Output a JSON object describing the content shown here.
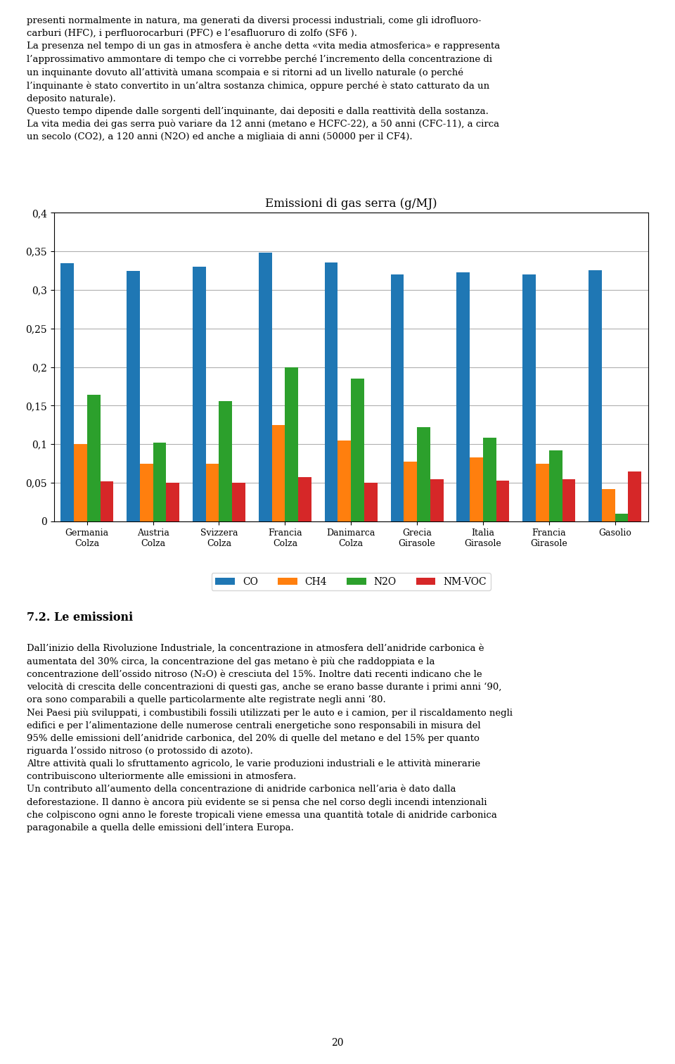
{
  "chart_data": {
    "type": "bar",
    "title": "Emissioni di gas serra (g/MJ)",
    "categories": [
      "Germania\nColza",
      "Austria\nColza",
      "Svizzera\nColza",
      "Francia\nColza",
      "Danimarca\nColza",
      "Grecia\nGirasole",
      "Italia\nGirasole",
      "Francia\nGirasole",
      "Gasolio"
    ],
    "series": [
      {
        "name": "CO",
        "values": [
          0.335,
          0.325,
          0.33,
          0.348,
          0.336,
          0.32,
          0.323,
          0.32,
          0.326
        ]
      },
      {
        "name": "CH4",
        "values": [
          0.1,
          0.075,
          0.075,
          0.125,
          0.105,
          0.077,
          0.083,
          0.075,
          0.042
        ]
      },
      {
        "name": "N2O",
        "values": [
          0.164,
          0.102,
          0.156,
          0.2,
          0.185,
          0.122,
          0.108,
          0.092,
          0.01
        ]
      },
      {
        "name": "NM-VOC",
        "values": [
          0.052,
          0.05,
          0.05,
          0.057,
          0.05,
          0.055,
          0.053,
          0.055,
          0.065
        ]
      }
    ],
    "ylim": [
      0,
      0.4
    ],
    "yticks": [
      0,
      {
        "value": 0.05,
        "label": "0,05"
      },
      {
        "value": 0.1,
        "label": "0,1"
      },
      {
        "value": 0.15,
        "label": "0,15"
      },
      {
        "value": 0.2,
        "label": "0,2"
      },
      {
        "value": 0.25,
        "label": "0,25"
      },
      {
        "value": 0.3,
        "label": "0,3"
      },
      {
        "value": 0.35,
        "label": "0,35"
      },
      {
        "value": 0.4,
        "label": "0,4"
      }
    ],
    "grid": true,
    "legend": "lower center",
    "annotations": [
      "presenti normalmente in natura, ma generati da diversi processi industriali, come gli idrofluoro-\ncarburi (HFC), i perfluorocarburi (PFC) e l’esafluoruro di zolfo (SF6 ).\nLa presenza nel tempo di un gas in atmosfera è anche detta «vita media atmosferica» e rappresenta\nl’approssimativo ammontare di tempo che ci vorrebbe perché l’incremento della concentrazione di\nun inquinante dovuto all’attività umana scompaia e si ritorni ad un livello naturale (o perché\nl’inquinante è stato convertito in un’altra sostanza chimica, oppure perché è stato catturato da un\ndeposito naturale).\nQuesto tempo dipende dalle sorgenti dell’inquinante, dai depositi e dalla reattività della sostanza.\nLa vita media dei gas serra può variare da 12 anni (metano e HCFC-22), a 50 anni (CFC-11), a circa\nun secolo (CO2), a 120 anni (N2O) ed anche a migliaia di anni (50000 per il CF4).",
      "7.2. Le emissioni",
      "Dall’inizio della Rivoluzione Industriale, la concentrazione in atmosfera dell’anidride carbonica è\naumentata del 30% circa, la concentrazione del gas metano è più che raddoppiata e la\nconcentrazione dell’ossido nitroso (N₂O) è cresciuta del 15%. Inoltre dati recenti indicano che le\nvelocità di crescita delle concentrazioni di questi gas, anche se erano basse durante i primi anni ‘90,\nora sono comparabili a quelle particolarmente alte registrate negli anni ‘80.\nNei Paesi più sviluppati, i combustibili fossili utilizzati per le auto e i camion, per il riscaldamento negli\nedifici e per l’alimentazione delle numerose centrali energetiche sono responsabili in misura del\n95% delle emissioni dell’anidride carbonica, del 20% di quelle del metano e del 15% per quanto\nriguarda l’ossido nitroso (o protossido di azoto).\nAltre attività quali lo sfruttamento agricolo, le varie produzioni industriali e le attività minerarie\ncontribuiscono ulteriormente alle emissioni in atmosfera.\nUn contributo all’aumento della concentrazione di anidride carbonica nell’aria è dato dalla\ndeforestazione. Il danno è ancora più evidente se si pensa che nel corso degli incendi intenzionali\nche colpiscono ogni anno le foreste tropicali viene emessa una quantità totale di anidride carbonica\nparagonabile a quella delle emissioni dell’intera Europa.",
      "20"
    ]
  }
}
